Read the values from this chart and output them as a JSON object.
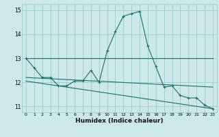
{
  "xlabel": "Humidex (Indice chaleur)",
  "bg_color": "#cce8e8",
  "grid_color": "#99cccc",
  "line_color": "#1a6b6b",
  "xlim": [
    -0.5,
    23.5
  ],
  "ylim": [
    10.75,
    15.25
  ],
  "yticks": [
    11,
    12,
    13,
    14,
    15
  ],
  "xticks": [
    0,
    1,
    2,
    3,
    4,
    5,
    6,
    7,
    8,
    9,
    10,
    11,
    12,
    13,
    14,
    15,
    16,
    17,
    18,
    19,
    20,
    21,
    22,
    23
  ],
  "series": [
    {
      "x": [
        0,
        1,
        2,
        3,
        4,
        5,
        6,
        7,
        8,
        9,
        10,
        11,
        12,
        13,
        14,
        15,
        16,
        17,
        18,
        19,
        20,
        21,
        22,
        23
      ],
      "y": [
        13.0,
        12.6,
        12.2,
        12.2,
        11.85,
        11.85,
        12.05,
        12.05,
        12.5,
        12.0,
        13.3,
        14.1,
        14.75,
        14.85,
        14.95,
        13.5,
        12.65,
        11.8,
        11.85,
        11.45,
        11.35,
        11.35,
        11.05,
        10.9
      ],
      "markers": true
    },
    {
      "x": [
        0,
        23
      ],
      "y": [
        13.0,
        13.0
      ],
      "markers": false
    },
    {
      "x": [
        0,
        23
      ],
      "y": [
        12.2,
        11.8
      ],
      "markers": false
    },
    {
      "x": [
        0,
        23
      ],
      "y": [
        12.05,
        10.9
      ],
      "markers": false
    }
  ]
}
